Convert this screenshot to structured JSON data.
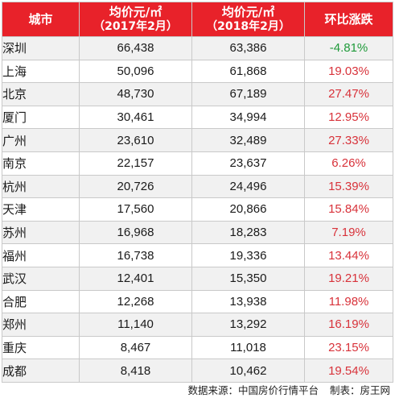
{
  "table": {
    "headers": {
      "city": "城市",
      "price_2017": "均价元/㎡",
      "price_2017_period": "（2017年2月）",
      "price_2018": "均价元/㎡",
      "price_2018_period": "（2018年2月）",
      "change": "环比涨跌"
    },
    "rows": [
      {
        "city": "深圳",
        "p2017": "66,438",
        "p2018": "63,386",
        "change": "-4.81%",
        "direction": "down"
      },
      {
        "city": "上海",
        "p2017": "50,096",
        "p2018": "61,868",
        "change": "19.03%",
        "direction": "up"
      },
      {
        "city": "北京",
        "p2017": "48,730",
        "p2018": "67,189",
        "change": "27.47%",
        "direction": "up"
      },
      {
        "city": "厦门",
        "p2017": "30,461",
        "p2018": "34,994",
        "change": "12.95%",
        "direction": "up"
      },
      {
        "city": "广州",
        "p2017": "23,610",
        "p2018": "32,489",
        "change": "27.33%",
        "direction": "up"
      },
      {
        "city": "南京",
        "p2017": "22,157",
        "p2018": "23,637",
        "change": "6.26%",
        "direction": "up"
      },
      {
        "city": "杭州",
        "p2017": "20,726",
        "p2018": "24,496",
        "change": "15.39%",
        "direction": "up"
      },
      {
        "city": "天津",
        "p2017": "17,560",
        "p2018": "20,866",
        "change": "15.84%",
        "direction": "up"
      },
      {
        "city": "苏州",
        "p2017": "16,968",
        "p2018": "18,283",
        "change": "7.19%",
        "direction": "up"
      },
      {
        "city": "福州",
        "p2017": "16,738",
        "p2018": "19,336",
        "change": "13.44%",
        "direction": "up"
      },
      {
        "city": "武汉",
        "p2017": "12,401",
        "p2018": "15,350",
        "change": "19.21%",
        "direction": "up"
      },
      {
        "city": "合肥",
        "p2017": "12,268",
        "p2018": "13,938",
        "change": "11.98%",
        "direction": "up"
      },
      {
        "city": "郑州",
        "p2017": "11,140",
        "p2018": "13,292",
        "change": "16.19%",
        "direction": "up"
      },
      {
        "city": "重庆",
        "p2017": "8,467",
        "p2018": "11,018",
        "change": "23.15%",
        "direction": "up"
      },
      {
        "city": "成都",
        "p2017": "8,418",
        "p2018": "10,462",
        "change": "19.54%",
        "direction": "up"
      }
    ]
  },
  "footer": {
    "source": "数据来源：中国房价行情平台",
    "producer": "制表：房王网"
  },
  "colors": {
    "header_bg": "#e8222a",
    "header_text": "#ffffff",
    "increase": "#d8323a",
    "decrease": "#1f9a3a",
    "row_alt": "#f1f1f1"
  }
}
